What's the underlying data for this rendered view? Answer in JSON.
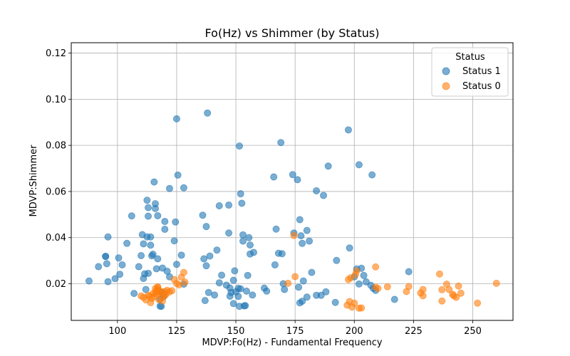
{
  "chart_data": {
    "type": "scatter",
    "title": "Fo(Hz) vs Shimmer (by Status)",
    "xlabel": "MDVP:Fo(Hz) - Fundamental Frequency",
    "ylabel": "MDVP:Shimmer",
    "xlim": [
      80.5,
      267
    ],
    "ylim": [
      0.0041,
      0.1245
    ],
    "xticks": [
      "100",
      "125",
      "150",
      "175",
      "200",
      "225",
      "250"
    ],
    "xtick_values": [
      100,
      125,
      150,
      175,
      200,
      225,
      250
    ],
    "yticks": [
      "0.02",
      "0.04",
      "0.06",
      "0.08",
      "0.10",
      "0.12"
    ],
    "ytick_values": [
      0.02,
      0.04,
      0.06,
      0.08,
      0.1,
      0.12
    ],
    "grid": true,
    "legend": {
      "title": "Status",
      "placement": "top-right"
    },
    "series": [
      {
        "name": "Status 1",
        "color": "#1f77b4",
        "points": [
          [
            88,
            0.0212
          ],
          [
            92,
            0.0274
          ],
          [
            95,
            0.0319
          ],
          [
            95,
            0.0318
          ],
          [
            95.5,
            0.0287
          ],
          [
            96,
            0.0209
          ],
          [
            96,
            0.0403
          ],
          [
            99,
            0.0222
          ],
          [
            100.5,
            0.0312
          ],
          [
            101,
            0.0241
          ],
          [
            102,
            0.0282
          ],
          [
            104,
            0.0375
          ],
          [
            106,
            0.0494
          ],
          [
            107,
            0.0158
          ],
          [
            109,
            0.0274
          ],
          [
            110,
            0.0322
          ],
          [
            110.5,
            0.0413
          ],
          [
            111,
            0.0373
          ],
          [
            111,
            0.0223
          ],
          [
            111.5,
            0.0243
          ],
          [
            112,
            0.0175
          ],
          [
            112.5,
            0.0562
          ],
          [
            112.5,
            0.0403
          ],
          [
            113,
            0.0245
          ],
          [
            113,
            0.0493
          ],
          [
            113,
            0.053
          ],
          [
            114,
            0.0403
          ],
          [
            114,
            0.0367
          ],
          [
            114.5,
            0.0321
          ],
          [
            115,
            0.0328
          ],
          [
            115.5,
            0.0641
          ],
          [
            116,
            0.0526
          ],
          [
            116,
            0.0547
          ],
          [
            116.5,
            0.0265
          ],
          [
            117,
            0.0308
          ],
          [
            117,
            0.0495
          ],
          [
            117.5,
            0.0167
          ],
          [
            118,
            0.0103
          ],
          [
            118,
            0.0133
          ],
          [
            118.5,
            0.0102
          ],
          [
            119,
            0.0268
          ],
          [
            119,
            0.0162
          ],
          [
            119.5,
            0.0156
          ],
          [
            119.5,
            0.0144
          ],
          [
            120,
            0.0436
          ],
          [
            120,
            0.047
          ],
          [
            121,
            0.0254
          ],
          [
            122,
            0.0613
          ],
          [
            122,
            0.023
          ],
          [
            124,
            0.0386
          ],
          [
            124.5,
            0.0468
          ],
          [
            125,
            0.0915
          ],
          [
            125,
            0.0284
          ],
          [
            125.5,
            0.0671
          ],
          [
            127,
            0.0324
          ],
          [
            128,
            0.0616
          ],
          [
            128,
            0.0198
          ],
          [
            136,
            0.0497
          ],
          [
            136.5,
            0.0308
          ],
          [
            137,
            0.0127
          ],
          [
            137.5,
            0.0448
          ],
          [
            137.5,
            0.0278
          ],
          [
            138,
            0.094
          ],
          [
            138.5,
            0.0162
          ],
          [
            139,
            0.032
          ],
          [
            141,
            0.0151
          ],
          [
            142,
            0.0346
          ],
          [
            143,
            0.0538
          ],
          [
            143,
            0.0204
          ],
          [
            144,
            0.0237
          ],
          [
            146,
            0.0194
          ],
          [
            147,
            0.0541
          ],
          [
            147,
            0.042
          ],
          [
            147.5,
            0.0181
          ],
          [
            147.5,
            0.0146
          ],
          [
            148,
            0.0162
          ],
          [
            149,
            0.0114
          ],
          [
            149,
            0.0215
          ],
          [
            149.5,
            0.0256
          ],
          [
            150,
            0.0165
          ],
          [
            151,
            0.0145
          ],
          [
            151,
            0.018
          ],
          [
            151.5,
            0.0102
          ],
          [
            151.5,
            0.0797
          ],
          [
            152,
            0.059
          ],
          [
            152,
            0.0178
          ],
          [
            152.5,
            0.0549
          ],
          [
            153,
            0.0412
          ],
          [
            153,
            0.0385
          ],
          [
            153.5,
            0.0104
          ],
          [
            154,
            0.0105
          ],
          [
            154.5,
            0.0168
          ],
          [
            155,
            0.0236
          ],
          [
            155.5,
            0.04
          ],
          [
            156,
            0.0368
          ],
          [
            156,
            0.0329
          ],
          [
            157,
            0.0151
          ],
          [
            157.5,
            0.0336
          ],
          [
            162,
            0.0181
          ],
          [
            163,
            0.0168
          ],
          [
            166,
            0.0663
          ],
          [
            166.5,
            0.0282
          ],
          [
            167,
            0.0437
          ],
          [
            168,
            0.0332
          ],
          [
            169,
            0.0812
          ],
          [
            169.5,
            0.033
          ],
          [
            170,
            0.02
          ],
          [
            170.5,
            0.0175
          ],
          [
            174,
            0.0673
          ],
          [
            174.5,
            0.042
          ],
          [
            176,
            0.0651
          ],
          [
            176.5,
            0.0185
          ],
          [
            177,
            0.0478
          ],
          [
            177,
            0.0117
          ],
          [
            177.5,
            0.0408
          ],
          [
            178,
            0.0375
          ],
          [
            178,
            0.0124
          ],
          [
            178.5,
            0.0212
          ],
          [
            180,
            0.0431
          ],
          [
            180,
            0.0142
          ],
          [
            181,
            0.0385
          ],
          [
            182,
            0.0249
          ],
          [
            184,
            0.015
          ],
          [
            184,
            0.0603
          ],
          [
            186,
            0.015
          ],
          [
            187,
            0.0583
          ],
          [
            188,
            0.0165
          ],
          [
            189,
            0.071
          ],
          [
            192,
            0.0119
          ],
          [
            192.5,
            0.0301
          ],
          [
            197.5,
            0.0867
          ],
          [
            198,
            0.0355
          ],
          [
            200,
            0.023
          ],
          [
            201,
            0.0264
          ],
          [
            202,
            0.0716
          ],
          [
            202,
            0.0199
          ],
          [
            203,
            0.0267
          ],
          [
            204,
            0.0236
          ],
          [
            205,
            0.0208
          ],
          [
            207,
            0.0193
          ],
          [
            207.5,
            0.0672
          ],
          [
            208,
            0.018
          ],
          [
            209,
            0.0171
          ],
          [
            217,
            0.0132
          ],
          [
            223,
            0.0252
          ]
        ]
      },
      {
        "name": "Status 0",
        "color": "#ff7f0e",
        "points": [
          [
            110,
            0.0147
          ],
          [
            111,
            0.0141
          ],
          [
            112,
            0.013
          ],
          [
            113,
            0.015
          ],
          [
            113.5,
            0.0146
          ],
          [
            114,
            0.0118
          ],
          [
            114.5,
            0.0136
          ],
          [
            115,
            0.0158
          ],
          [
            115.5,
            0.0144
          ],
          [
            116,
            0.0161
          ],
          [
            116,
            0.0179
          ],
          [
            116.5,
            0.0171
          ],
          [
            116.5,
            0.0156
          ],
          [
            117,
            0.0187
          ],
          [
            117,
            0.0183
          ],
          [
            117.5,
            0.0172
          ],
          [
            117.5,
            0.0131
          ],
          [
            118,
            0.0167
          ],
          [
            118,
            0.016
          ],
          [
            119,
            0.0142
          ],
          [
            119,
            0.0125
          ],
          [
            120,
            0.0149
          ],
          [
            120,
            0.0167
          ],
          [
            120.5,
            0.0155
          ],
          [
            121,
            0.0171
          ],
          [
            122,
            0.0165
          ],
          [
            123,
            0.017
          ],
          [
            124,
            0.0218
          ],
          [
            125,
            0.0201
          ],
          [
            126,
            0.0195
          ],
          [
            127,
            0.0228
          ],
          [
            128,
            0.0249
          ],
          [
            128.5,
            0.0207
          ],
          [
            172,
            0.0202
          ],
          [
            174.5,
            0.0409
          ],
          [
            175,
            0.0231
          ],
          [
            197,
            0.0107
          ],
          [
            197.5,
            0.0218
          ],
          [
            198,
            0.0123
          ],
          [
            198.5,
            0.0226
          ],
          [
            199,
            0.0099
          ],
          [
            200,
            0.0116
          ],
          [
            200.5,
            0.024
          ],
          [
            201,
            0.0256
          ],
          [
            202,
            0.0094
          ],
          [
            203,
            0.0095
          ],
          [
            209,
            0.0185
          ],
          [
            209,
            0.0273
          ],
          [
            210,
            0.018
          ],
          [
            214,
            0.0187
          ],
          [
            222,
            0.0166
          ],
          [
            223,
            0.0188
          ],
          [
            228,
            0.016
          ],
          [
            229,
            0.0175
          ],
          [
            229,
            0.0148
          ],
          [
            236,
            0.0242
          ],
          [
            237,
            0.0174
          ],
          [
            237,
            0.0125
          ],
          [
            239,
            0.0198
          ],
          [
            240,
            0.0175
          ],
          [
            241.5,
            0.0154
          ],
          [
            242,
            0.0148
          ],
          [
            243,
            0.0141
          ],
          [
            244,
            0.019
          ],
          [
            245,
            0.0159
          ],
          [
            252,
            0.0116
          ],
          [
            260,
            0.0202
          ]
        ]
      }
    ]
  }
}
